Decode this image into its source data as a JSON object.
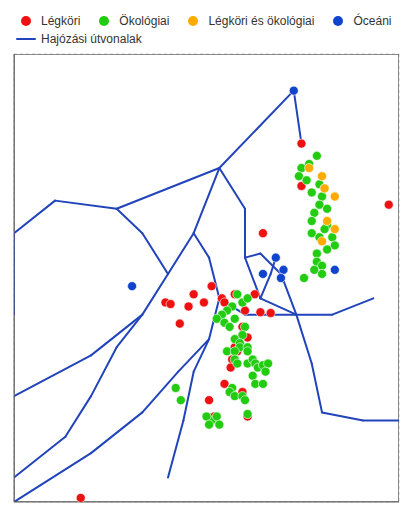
{
  "chart_data": {
    "type": "scatter",
    "xlim": [
      -30,
      45
    ],
    "ylim": [
      27,
      82
    ],
    "xticks": [
      -30,
      -20,
      -10,
      0,
      10,
      20,
      30,
      40
    ],
    "yticks": [
      30,
      40,
      50,
      60,
      70,
      80
    ],
    "grid": true,
    "tick_labels": false,
    "legend": "upper left",
    "series": [
      {
        "name": "Légköri",
        "type": "scatter",
        "color": "#ee1111",
        "points": [
          [
            26.0,
            71.0
          ],
          [
            26.0,
            65.8
          ],
          [
            18.5,
            60.0
          ],
          [
            5.0,
            52.5
          ],
          [
            4.0,
            51.0
          ],
          [
            2.3,
            48.9
          ],
          [
            -0.5,
            51.5
          ],
          [
            0.5,
            51.3
          ],
          [
            7.0,
            51.5
          ],
          [
            8.5,
            53.5
          ],
          [
            10.5,
            52.0
          ],
          [
            11.0,
            51.5
          ],
          [
            13.0,
            52.5
          ],
          [
            15.0,
            50.5
          ],
          [
            16.9,
            52.5
          ],
          [
            18.0,
            50.3
          ],
          [
            20.0,
            50.2
          ],
          [
            14.5,
            48.5
          ],
          [
            15.5,
            47.2
          ],
          [
            13.0,
            46.0
          ],
          [
            13.5,
            45.5
          ],
          [
            12.5,
            44.5
          ],
          [
            12.2,
            43.5
          ],
          [
            11.0,
            41.5
          ],
          [
            14.5,
            40.5
          ],
          [
            15.5,
            37.5
          ],
          [
            8.0,
            39.5
          ],
          [
            9.0,
            37.5
          ],
          [
            43.0,
            63.5
          ],
          [
            -17.0,
            27.5
          ]
        ]
      },
      {
        "name": "Ökológiai",
        "type": "scatter",
        "color": "#22cc11",
        "points": [
          [
            29.0,
            69.5
          ],
          [
            27.5,
            68.5
          ],
          [
            26.0,
            68.0
          ],
          [
            25.5,
            67.0
          ],
          [
            27.0,
            66.5
          ],
          [
            29.5,
            66.0
          ],
          [
            30.5,
            65.5
          ],
          [
            28.0,
            65.0
          ],
          [
            30.0,
            64.5
          ],
          [
            29.5,
            63.5
          ],
          [
            31.0,
            63.0
          ],
          [
            28.5,
            62.5
          ],
          [
            28.0,
            61.5
          ],
          [
            31.0,
            61.0
          ],
          [
            30.5,
            60.5
          ],
          [
            28.0,
            60.0
          ],
          [
            29.5,
            59.5
          ],
          [
            32.0,
            59.5
          ],
          [
            32.5,
            58.5
          ],
          [
            31.0,
            58.0
          ],
          [
            29.0,
            57.5
          ],
          [
            29.0,
            56.5
          ],
          [
            30.0,
            56.0
          ],
          [
            28.5,
            55.5
          ],
          [
            30.0,
            55.0
          ],
          [
            26.5,
            54.5
          ],
          [
            13.5,
            52.5
          ],
          [
            14.5,
            51.5
          ],
          [
            15.5,
            52.0
          ],
          [
            12.5,
            51.0
          ],
          [
            11.5,
            50.5
          ],
          [
            10.5,
            50.0
          ],
          [
            9.5,
            49.5
          ],
          [
            11.0,
            49.0
          ],
          [
            13.0,
            49.5
          ],
          [
            12.0,
            48.5
          ],
          [
            15.0,
            48.5
          ],
          [
            14.5,
            47.5
          ],
          [
            13.0,
            47.0
          ],
          [
            14.0,
            46.5
          ],
          [
            14.0,
            46.0
          ],
          [
            15.5,
            46.0
          ],
          [
            11.5,
            45.5
          ],
          [
            13.0,
            45.5
          ],
          [
            15.5,
            45.5
          ],
          [
            13.0,
            44.5
          ],
          [
            13.5,
            44.0
          ],
          [
            15.5,
            44.0
          ],
          [
            16.5,
            44.5
          ],
          [
            17.0,
            44.0
          ],
          [
            17.5,
            43.5
          ],
          [
            18.5,
            43.8
          ],
          [
            19.5,
            44.0
          ],
          [
            19.0,
            43.0
          ],
          [
            16.5,
            42.5
          ],
          [
            17.0,
            41.5
          ],
          [
            18.5,
            41.5
          ],
          [
            12.5,
            41.0
          ],
          [
            12.0,
            40.5
          ],
          [
            13.0,
            40.0
          ],
          [
            14.5,
            40.0
          ],
          [
            15.0,
            39.5
          ],
          [
            15.5,
            37.8
          ],
          [
            8.5,
            37.0
          ],
          [
            9.5,
            37.5
          ],
          [
            10.0,
            36.5
          ],
          [
            7.5,
            37.5
          ],
          [
            8.0,
            36.5
          ],
          [
            2.5,
            39.5
          ],
          [
            1.5,
            41.0
          ]
        ]
      },
      {
        "name": "Légköri és ökológiai",
        "type": "scatter",
        "color": "#ffaa00",
        "points": [
          [
            27.5,
            68.0
          ],
          [
            30.0,
            67.0
          ],
          [
            30.5,
            65.5
          ],
          [
            32.5,
            64.5
          ],
          [
            31.0,
            61.5
          ],
          [
            32.5,
            60.5
          ],
          [
            30.0,
            59.0
          ]
        ]
      },
      {
        "name": "Óceáni",
        "type": "scatter",
        "color": "#1144cc",
        "points": [
          [
            24.5,
            77.5
          ],
          [
            -7.0,
            53.5
          ],
          [
            21.0,
            57.0
          ],
          [
            22.5,
            55.5
          ],
          [
            18.5,
            55.0
          ],
          [
            32.5,
            55.5
          ],
          [
            22.0,
            54.5
          ]
        ]
      },
      {
        "name": "Hajózási útvonalak",
        "type": "line",
        "color": "#2244bb",
        "segments": [
          [
            24.5,
            77.5,
            26.0,
            71.0
          ],
          [
            24.5,
            77.5,
            10.0,
            68.0
          ],
          [
            10.0,
            68.0,
            -10.0,
            63.0
          ],
          [
            -10.0,
            63.0,
            -22.0,
            64.0
          ],
          [
            -22.0,
            64.0,
            -30.0,
            60.0
          ],
          [
            -30.0,
            60.0,
            -30.0,
            50.0
          ],
          [
            10.0,
            68.0,
            5.0,
            60.0
          ],
          [
            5.0,
            60.0,
            0.0,
            55.0
          ],
          [
            0.0,
            55.0,
            -5.0,
            50.0
          ],
          [
            -5.0,
            50.0,
            -15.0,
            45.0
          ],
          [
            -15.0,
            45.0,
            -30.0,
            40.0
          ],
          [
            10.0,
            68.0,
            15.0,
            63.0
          ],
          [
            15.0,
            63.0,
            15.0,
            57.0
          ],
          [
            15.0,
            57.0,
            18.0,
            52.0
          ],
          [
            18.0,
            52.0,
            25.0,
            50.0
          ],
          [
            25.0,
            50.0,
            32.0,
            50.0
          ],
          [
            32.0,
            50.0,
            40.0,
            52.0
          ],
          [
            18.0,
            52.0,
            20.0,
            55.0
          ],
          [
            20.0,
            55.0,
            21.0,
            57.0
          ],
          [
            5.0,
            60.0,
            8.0,
            57.0
          ],
          [
            8.0,
            57.0,
            10.0,
            52.0
          ],
          [
            10.0,
            52.0,
            8.0,
            47.0
          ],
          [
            8.0,
            47.0,
            2.0,
            43.0
          ],
          [
            2.0,
            43.0,
            -5.0,
            38.0
          ],
          [
            -5.0,
            38.0,
            -15.0,
            33.0
          ],
          [
            -15.0,
            33.0,
            -30.0,
            27.0
          ],
          [
            8.0,
            47.0,
            5.0,
            43.0
          ],
          [
            5.0,
            43.0,
            3.0,
            37.0
          ],
          [
            3.0,
            37.0,
            0.0,
            30.0
          ],
          [
            0.0,
            55.0,
            -5.0,
            60.0
          ],
          [
            -5.0,
            60.0,
            -10.0,
            63.0
          ],
          [
            15.0,
            57.0,
            18.0,
            57.5
          ],
          [
            18.0,
            57.5,
            22.0,
            55.0
          ],
          [
            22.0,
            55.0,
            25.0,
            50.0
          ],
          [
            25.0,
            50.0,
            28.0,
            44.0
          ],
          [
            28.0,
            44.0,
            30.0,
            38.0
          ],
          [
            30.0,
            38.0,
            38.0,
            37.0
          ],
          [
            38.0,
            37.0,
            45.0,
            37.0
          ],
          [
            25.0,
            50.0,
            20.0,
            50.0
          ],
          [
            20.0,
            50.0,
            15.0,
            50.0
          ],
          [
            15.0,
            50.0,
            10.0,
            52.0
          ],
          [
            -5.0,
            50.0,
            -10.0,
            46.0
          ],
          [
            -10.0,
            46.0,
            -15.0,
            40.0
          ],
          [
            -15.0,
            40.0,
            -20.0,
            35.0
          ],
          [
            -20.0,
            35.0,
            -30.0,
            30.0
          ]
        ]
      }
    ]
  }
}
